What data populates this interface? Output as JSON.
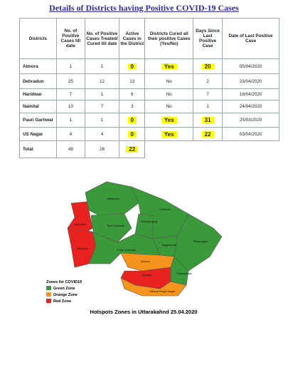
{
  "title": "Details of Districts having Positive COVID-19 Cases",
  "table": {
    "headers": [
      "Districts",
      "No. of Positive Cases till date",
      "No. of Positive Cases Treated/ Cured till date",
      "Active Cases in the District",
      "Districts Cured all their positive Cases (Yes/No)",
      "Days Since Last Positive Case",
      "Date of Last Positive Case"
    ],
    "highlight_color": "#ffff00",
    "rows": [
      {
        "cells": [
          "Almora",
          "1",
          "1",
          "0",
          "Yes",
          "20",
          "05/04/2020"
        ],
        "highlight": true
      },
      {
        "cells": [
          "Dehradun",
          "25",
          "12",
          "13",
          "No",
          "2",
          "23/04/2020"
        ],
        "highlight": false
      },
      {
        "cells": [
          "Haridwar",
          "7",
          "1",
          "6",
          "No",
          "7",
          "18/04/2020"
        ],
        "highlight": false
      },
      {
        "cells": [
          "Nainital",
          "10",
          "7",
          "3",
          "No",
          "1",
          "24/04/2020"
        ],
        "highlight": false
      },
      {
        "cells": [
          "Pauri Garhwal",
          "1",
          "1",
          "0",
          "Yes",
          "31",
          "25/03/2020"
        ],
        "highlight": true
      },
      {
        "cells": [
          "US Nagar",
          "4",
          "4",
          "0",
          "Yes",
          "22",
          "03/04/2020"
        ],
        "highlight": true
      }
    ],
    "total": [
      "Total",
      "48",
      "26",
      "22"
    ]
  },
  "map": {
    "caption": "Hotspots Zones in Uttarakahnd 25.04.2020",
    "legend_title": "Zones for COVID19",
    "zones": [
      {
        "name": "Green Zone",
        "color": "#3a9a3a"
      },
      {
        "name": "Orange Zone",
        "color": "#f7941d"
      },
      {
        "name": "Red Zone",
        "color": "#e8231f"
      }
    ],
    "districts": [
      {
        "label": "Uttarkashi",
        "zone": 0
      },
      {
        "label": "Dehradun",
        "zone": 2
      },
      {
        "label": "Tehri Garhwal",
        "zone": 0
      },
      {
        "label": "Chamoli",
        "zone": 0
      },
      {
        "label": "Rudraprayag",
        "zone": 0
      },
      {
        "label": "Pithoragarh",
        "zone": 0
      },
      {
        "label": "Bageshwar",
        "zone": 0
      },
      {
        "label": "Haridwar",
        "zone": 2
      },
      {
        "label": "Pauri Garhwal",
        "zone": 0
      },
      {
        "label": "Almora",
        "zone": 1
      },
      {
        "label": "Champawat",
        "zone": 0
      },
      {
        "label": "Nainital",
        "zone": 2
      },
      {
        "label": "Udham Singh Nagar",
        "zone": 1
      }
    ]
  }
}
